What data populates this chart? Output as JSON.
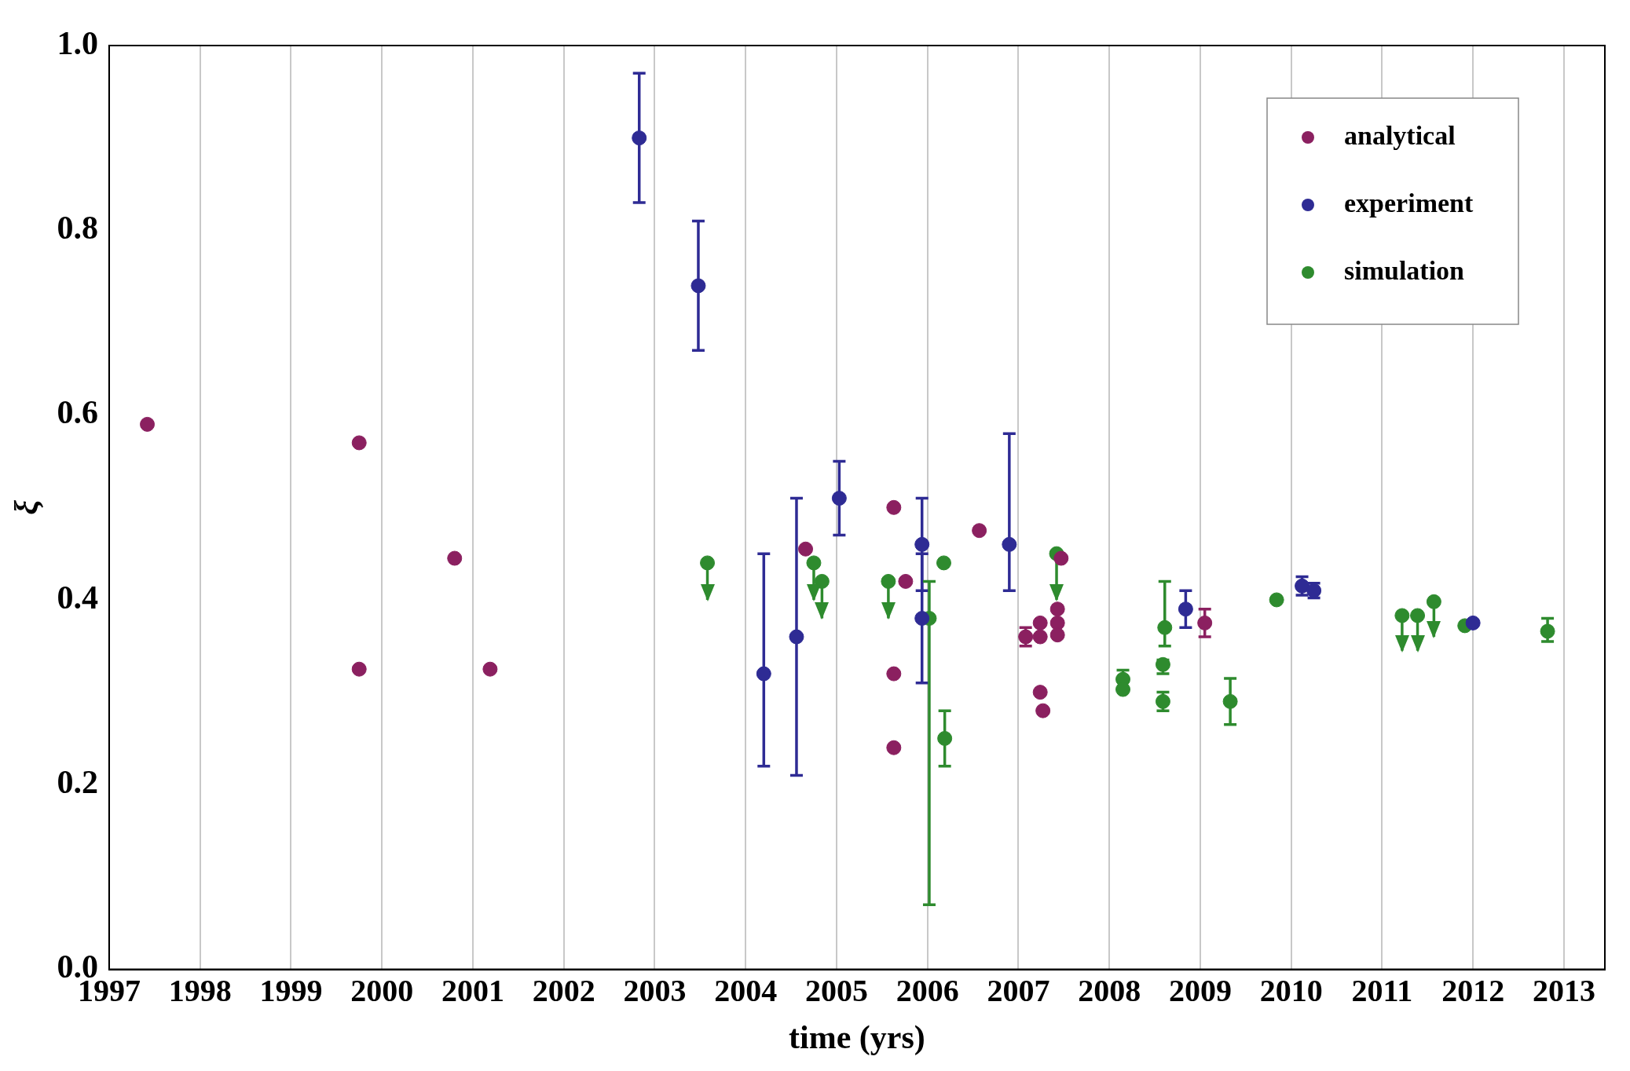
{
  "chart_data": {
    "type": "scatter",
    "xlabel": "time (yrs)",
    "ylabel": "ξ",
    "xlim": [
      1997,
      2013.45
    ],
    "xticks": [
      1997,
      1998,
      1999,
      2000,
      2001,
      2002,
      2003,
      2004,
      2005,
      2006,
      2007,
      2008,
      2009,
      2010,
      2011,
      2012,
      2013
    ],
    "ylim": [
      0,
      1
    ],
    "yticks": [
      {
        "value": 0,
        "label": "0.0"
      },
      {
        "value": 0.2,
        "label": "0.2"
      },
      {
        "value": 0.4,
        "label": "0.4"
      },
      {
        "value": 0.6,
        "label": "0.6"
      },
      {
        "value": 0.8,
        "label": "0.8"
      },
      {
        "value": 1,
        "label": "1.0"
      }
    ],
    "grid": "x",
    "legend": "top right",
    "marker": "circle",
    "series": [
      {
        "name": "analytical",
        "color": "#8b2060",
        "x": [
          1997.42,
          1999.75,
          1999.75,
          2000.8,
          2001.19,
          2004.66,
          2005.63,
          2005.76,
          2005.63,
          2005.63,
          2006.57,
          2007.08,
          2007.24,
          2007.24,
          2007.24,
          2007.27,
          2007.43,
          2007.43,
          2007.43,
          2007.47,
          2009.05
        ],
        "values": [
          0.59,
          0.57,
          0.325,
          0.445,
          0.325,
          0.455,
          0.5,
          0.42,
          0.32,
          0.24,
          0.475,
          0.36,
          0.375,
          0.36,
          0.3,
          0.28,
          0.39,
          0.375,
          0.362,
          0.445,
          0.375
        ],
        "errors": [
          null,
          null,
          null,
          null,
          null,
          null,
          null,
          null,
          null,
          null,
          null,
          0.01,
          null,
          null,
          null,
          null,
          null,
          null,
          null,
          null,
          0.015
        ]
      },
      {
        "name": "experiment",
        "color": "#2e2b94",
        "x": [
          2002.83,
          2003.48,
          2004.2,
          2004.56,
          2005.03,
          2005.94,
          2005.94,
          2006.9,
          2008.84,
          2010.12,
          2010.25,
          2012.0
        ],
        "values": [
          0.9,
          0.74,
          0.32,
          0.36,
          0.51,
          0.46,
          0.38,
          0.46,
          0.39,
          0.415,
          0.41,
          0.375
        ],
        "errors": [
          [
            0.83,
            0.97
          ],
          [
            0.67,
            0.81
          ],
          [
            0.22,
            0.45
          ],
          [
            0.21,
            0.51
          ],
          [
            0.47,
            0.55
          ],
          [
            0.41,
            0.51
          ],
          [
            0.31,
            0.45
          ],
          [
            0.41,
            0.58
          ],
          [
            0.37,
            0.41
          ],
          0.01,
          0.008,
          null
        ]
      },
      {
        "name": "simulation",
        "color": "#2e8b2e",
        "x": [
          2003.58,
          2004.75,
          2004.84,
          2005.57,
          2006.02,
          2006.18,
          2006.19,
          2007.42,
          2008.15,
          2008.15,
          2008.59,
          2008.61,
          2008.59,
          2009.33,
          2009.84,
          2011.22,
          2011.39,
          2011.57,
          2011.91,
          2012.82
        ],
        "values": [
          0.44,
          0.44,
          0.42,
          0.42,
          0.38,
          0.44,
          0.25,
          0.45,
          0.314,
          0.303,
          0.33,
          0.37,
          0.29,
          0.29,
          0.4,
          0.383,
          0.383,
          0.398,
          0.372,
          0.366
        ],
        "errors": [
          [
            0.4,
            0.44
          ],
          [
            0.4,
            0.44
          ],
          [
            0.38,
            0.42
          ],
          [
            0.38,
            0.42
          ],
          [
            0.07,
            0.42
          ],
          null,
          [
            0.22,
            0.28
          ],
          [
            0.4,
            0.45
          ],
          0.01,
          null,
          [
            0.32,
            0.335
          ],
          [
            0.35,
            0.42
          ],
          [
            0.28,
            0.3
          ],
          [
            0.265,
            0.315
          ],
          null,
          [
            0.345,
            0.383
          ],
          [
            0.345,
            0.383
          ],
          [
            0.36,
            0.398
          ],
          null,
          [
            0.355,
            0.38
          ]
        ]
      }
    ]
  }
}
